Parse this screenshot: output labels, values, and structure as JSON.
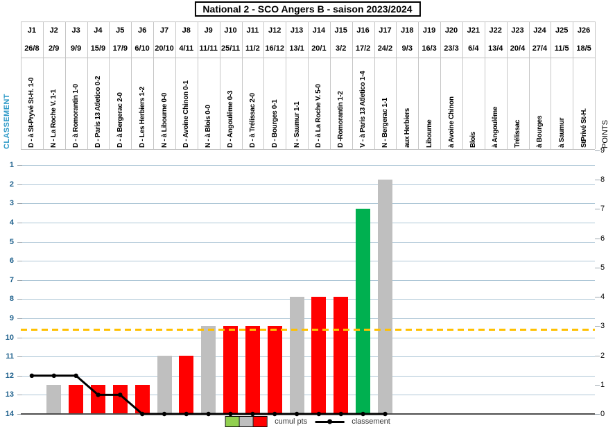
{
  "title": "National 2 - SCO Angers B - saison 2023/2024",
  "axes": {
    "left": {
      "title": "CLASSEMENT",
      "range": [
        1,
        14
      ],
      "inverted": true,
      "ticks": [
        "1",
        "2",
        "3",
        "4",
        "5",
        "6",
        "7",
        "8",
        "9",
        "10",
        "11",
        "12",
        "13",
        "14"
      ]
    },
    "right": {
      "title": "POINTS",
      "range": [
        0,
        9
      ],
      "ticks": [
        "0",
        "1",
        "2",
        "3",
        "4",
        "5",
        "6",
        "7",
        "8",
        "9"
      ]
    }
  },
  "legend": {
    "bars_label": "cumul pts",
    "line_label": "classement",
    "swatch_colors": [
      "#92D050",
      "#BFBFBF",
      "#FF0000"
    ]
  },
  "colors": {
    "win_bar": "#00B050",
    "draw_bar": "#BFBFBF",
    "loss_bar": "#FF0000",
    "threshold": "#FFC000",
    "line": "#000000",
    "classement_ticks": "#1F618D",
    "classement_title": "#2E9AC8",
    "gridline": "#ADC6D6"
  },
  "chart_data": {
    "type": "bar+line",
    "categories": [
      "J1",
      "J2",
      "J3",
      "J4",
      "J5",
      "J6",
      "J7",
      "J8",
      "J9",
      "J10",
      "J11",
      "J12",
      "J13",
      "J14",
      "J15",
      "J16",
      "J17",
      "J18",
      "J19",
      "J20",
      "J21",
      "J22",
      "J23",
      "J24",
      "J25",
      "J26"
    ],
    "dates": [
      "26/8",
      "2/9",
      "9/9",
      "15/9",
      "17/9",
      "6/10",
      "20/10",
      "4/11",
      "11/11",
      "25/11",
      "11/2",
      "16/12",
      "13/1",
      "20/1",
      "3/2",
      "17/2",
      "24/2",
      "9/3",
      "16/3",
      "23/3",
      "6/4",
      "13/4",
      "20/4",
      "27/4",
      "11/5",
      "18/5"
    ],
    "match_labels": [
      "D - à St-Pryvé St-H. 1-0",
      "N - La Roche V. 1-1",
      "D - à Romorantin 1-0",
      "D - Paris 13 Atletico 0-2",
      "D - à Bergerac 2-0",
      "D - Les Herbiers 1-2",
      "N - à Libourne 0-0",
      "D - Avoine Chinon 0-1",
      "N - à Blois 0-0",
      "D - Angoulême 0-3",
      "D - à Trélissac 2-0",
      "D - Bourges 0-1",
      "N - Saumur 1-1",
      "D - à La Roche V. 5-0",
      "D -Romorantin 1-2",
      "V - à Paris 13 Atletico 1-4",
      "N - Bergerac 1-1",
      "aux Herbiers",
      "Libourne",
      "à Avoine Chinon",
      "Blois",
      "à Angoulême",
      "Trélissac",
      "à Bourges",
      "à Saumur",
      "StPrivé St-H."
    ],
    "series": [
      {
        "name": "cumul pts",
        "type": "bar",
        "values": [
          0,
          1,
          1,
          1,
          1,
          1,
          2,
          2,
          3,
          3,
          3,
          3,
          4,
          4,
          4,
          7,
          8,
          null,
          null,
          null,
          null,
          null,
          null,
          null,
          null,
          null
        ],
        "result_codes": [
          "D",
          "N",
          "D",
          "D",
          "D",
          "D",
          "N",
          "D",
          "N",
          "D",
          "D",
          "D",
          "N",
          "D",
          "D",
          "V",
          "N",
          null,
          null,
          null,
          null,
          null,
          null,
          null,
          null,
          null
        ]
      },
      {
        "name": "classement",
        "type": "line",
        "values": [
          12,
          12,
          12,
          13,
          13,
          14,
          14,
          14,
          14,
          14,
          14,
          14,
          14,
          14,
          14,
          14,
          14,
          null,
          null,
          null,
          null,
          null,
          null,
          null,
          null,
          null
        ]
      }
    ],
    "threshold_line": {
      "value": 2.9,
      "style": "dashed"
    },
    "left_axis_range": [
      1,
      14
    ],
    "right_axis_range": [
      0,
      9
    ],
    "grid": "horizontal-only",
    "legend_position": "bottom"
  }
}
